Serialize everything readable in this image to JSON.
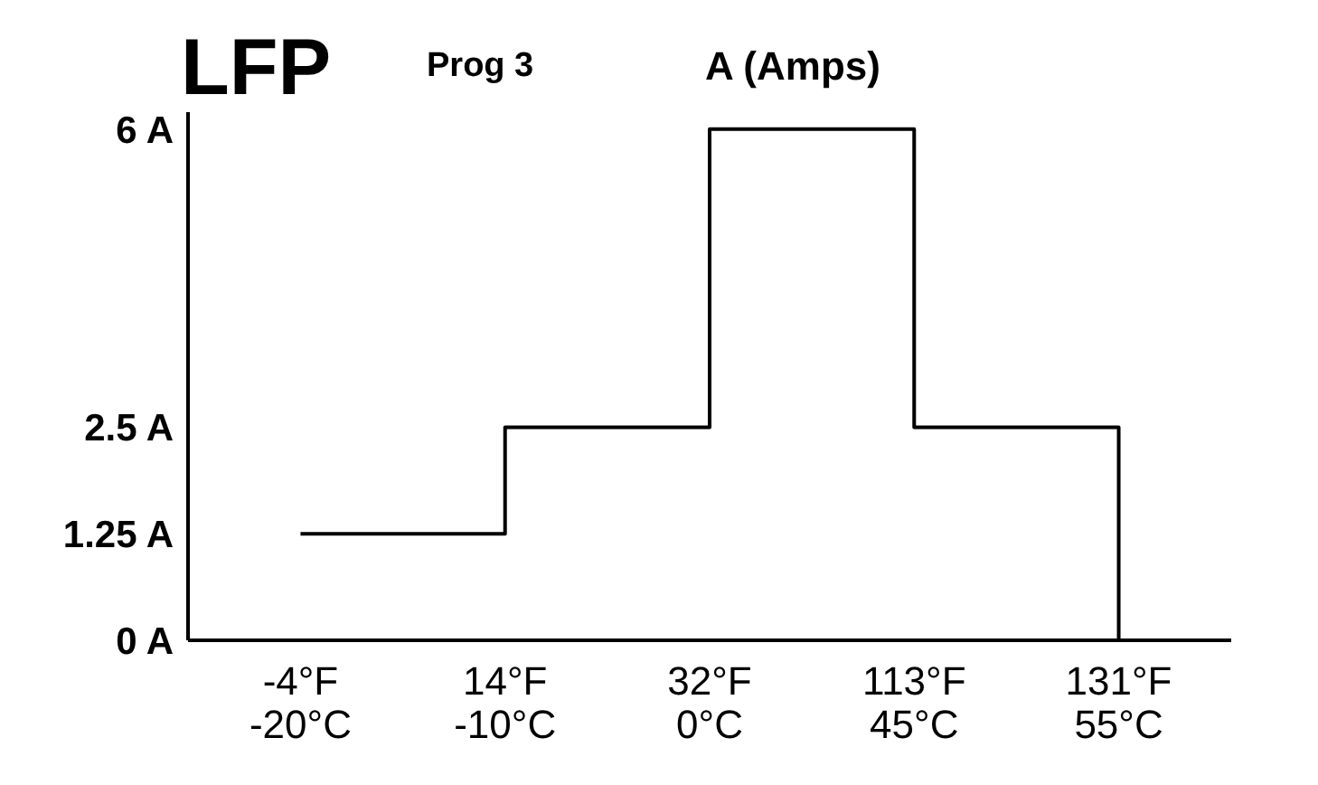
{
  "chart_data": {
    "type": "step",
    "title": "LFP",
    "subtitle": "Prog 3",
    "ylabel": "A (Amps)",
    "categories": [
      "-4°F\n-20°C",
      "14°F\n-10°C",
      "32°F\n0°C",
      "113°F\n45°C",
      "131°F\n55°C"
    ],
    "values": [
      1.25,
      2.5,
      6,
      2.5,
      0
    ],
    "color": "#000000",
    "ylim": [
      0,
      6.2
    ],
    "yticks": [
      {
        "value": 0,
        "label": "0 A"
      },
      {
        "value": 1.25,
        "label": "1.25 A"
      },
      {
        "value": 2.5,
        "label": "2.5 A"
      },
      {
        "value": 6,
        "label": "6 A"
      }
    ],
    "grid": false,
    "marker": "none",
    "line_style": "solid"
  }
}
